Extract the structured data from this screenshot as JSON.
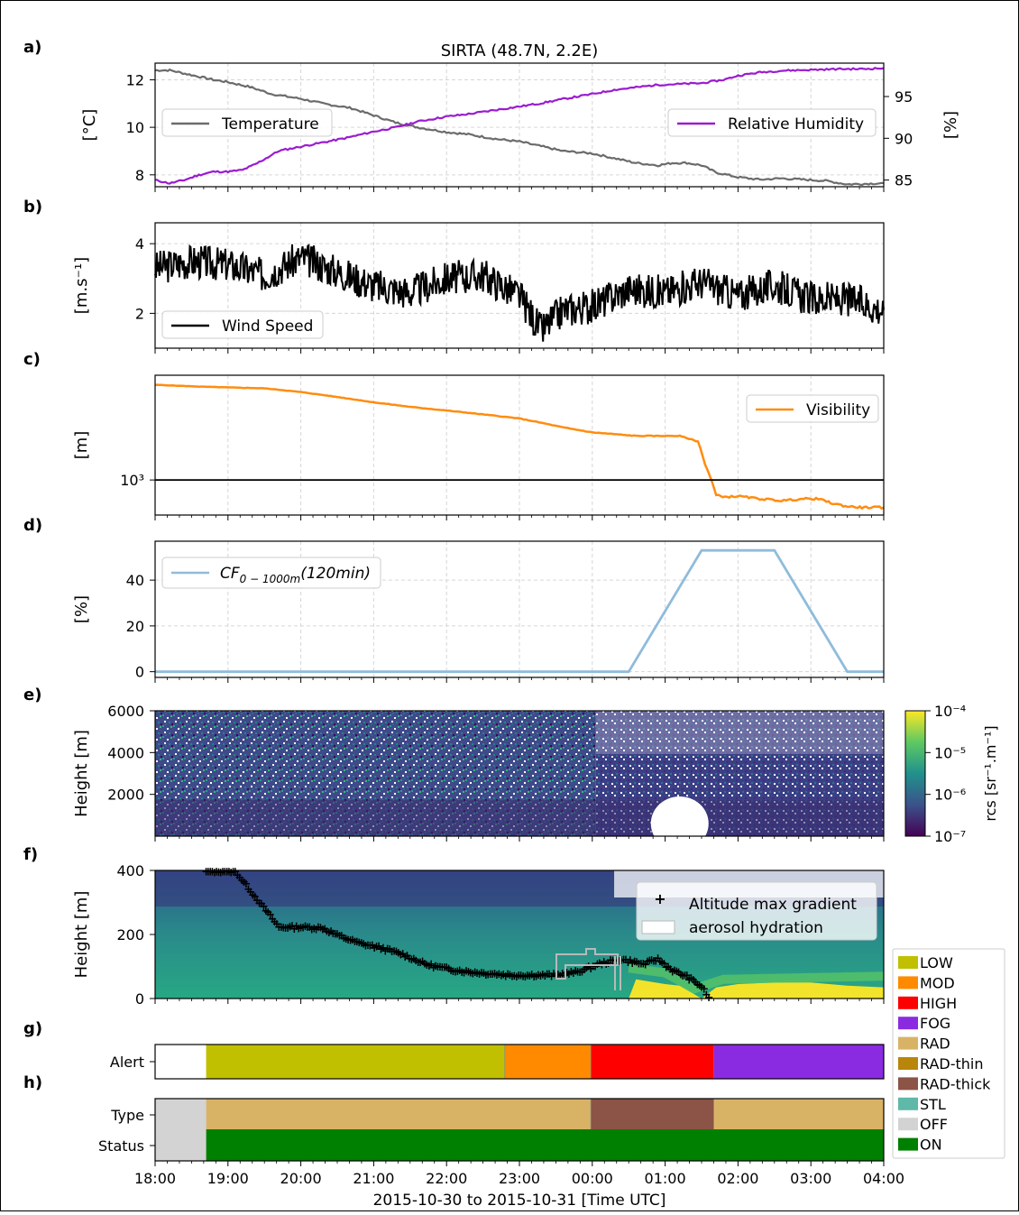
{
  "figure": {
    "title": "SIRTA (48.7N, 2.2E)",
    "xlabel": "2015-10-30 to 2015-10-31 [Time UTC]",
    "x_ticks": [
      "18:00",
      "19:00",
      "20:00",
      "21:00",
      "22:00",
      "23:00",
      "00:00",
      "01:00",
      "02:00",
      "03:00",
      "04:00"
    ],
    "x_range_hours": [
      0,
      10
    ]
  },
  "colors": {
    "temperature": "#6b6b6b",
    "humidity": "#9b1ccf",
    "wind": "#000000",
    "visibility": "#ff8c0f",
    "cloud_fraction": "#8fbcdb",
    "gradient_marker": "#ff33ff",
    "hydration": "#b9b9b9",
    "alert": {
      "LOW": "#c0c000",
      "MOD": "#ff8a00",
      "HIGH": "#ff0000",
      "FOG": "#8a2be2"
    },
    "type": {
      "RAD": "#d9b365",
      "RAD-thin": "#b8860b",
      "RAD-thick": "#8b5446",
      "STL": "#5fb8a8",
      "OFF": "#d3d3d3"
    },
    "status": {
      "ON": "#008000",
      "OFF": "#d3d3d3"
    }
  },
  "chart_data": [
    {
      "panel": "a)",
      "type": "line",
      "title": "SIRTA (48.7N, 2.2E)",
      "ylabel": "[°C]",
      "y2label": "[%]",
      "ylim": [
        7.5,
        12.7
      ],
      "y2lim": [
        84.2,
        99.0
      ],
      "yticks": [
        "8",
        "10",
        "12"
      ],
      "y2ticks": [
        "85",
        "90",
        "95"
      ],
      "legend": [
        "Temperature",
        "Relative Humidity"
      ],
      "series": [
        {
          "name": "Temperature",
          "axis": "left",
          "x": [
            0,
            0.2,
            0.5,
            0.8,
            1.0,
            1.3,
            1.6,
            2.0,
            2.3,
            2.7,
            3.0,
            3.3,
            3.6,
            4.0,
            4.3,
            4.7,
            5.0,
            5.3,
            5.6,
            6.0,
            6.3,
            6.6,
            6.9,
            7.1,
            7.3,
            7.5,
            7.7,
            8.0,
            8.3,
            8.6,
            8.9,
            9.2,
            9.5,
            10.0
          ],
          "values": [
            12.4,
            12.4,
            12.2,
            12.0,
            11.9,
            11.7,
            11.4,
            11.2,
            11.0,
            10.8,
            10.5,
            10.2,
            10.0,
            9.8,
            9.7,
            9.5,
            9.4,
            9.2,
            9.0,
            8.9,
            8.7,
            8.5,
            8.4,
            8.5,
            8.5,
            8.4,
            8.1,
            7.9,
            7.8,
            7.85,
            7.8,
            7.75,
            7.6,
            7.65
          ]
        },
        {
          "name": "Relative Humidity",
          "axis": "right",
          "x": [
            0,
            0.2,
            0.4,
            0.6,
            0.8,
            1.0,
            1.2,
            1.4,
            1.7,
            2.0,
            2.3,
            2.6,
            3.0,
            3.3,
            3.6,
            4.0,
            4.3,
            4.6,
            5.0,
            5.3,
            5.6,
            6.0,
            6.3,
            6.6,
            6.9,
            7.2,
            7.5,
            7.8,
            8.0,
            8.3,
            8.6,
            9.0,
            9.4,
            9.7,
            10.0
          ],
          "values": [
            85.0,
            84.6,
            85.0,
            85.6,
            86.0,
            86.0,
            86.2,
            87.0,
            88.5,
            89.0,
            89.5,
            90.0,
            90.8,
            91.3,
            92.0,
            92.6,
            92.9,
            93.3,
            93.8,
            94.2,
            94.7,
            95.3,
            95.8,
            96.1,
            96.4,
            96.5,
            96.6,
            97.0,
            97.5,
            97.9,
            98.1,
            98.2,
            98.3,
            98.3,
            98.4
          ]
        }
      ]
    },
    {
      "panel": "b)",
      "type": "line",
      "ylabel": "[m.s⁻¹]",
      "ylim": [
        1.0,
        4.6
      ],
      "yticks": [
        "2",
        "4"
      ],
      "legend": [
        "Wind Speed"
      ],
      "series": [
        {
          "name": "Wind Speed",
          "x": [
            0,
            0.5,
            1.0,
            1.5,
            2.0,
            2.5,
            3.0,
            3.5,
            4.0,
            4.5,
            5.0,
            5.3,
            5.6,
            6.0,
            6.5,
            7.0,
            7.5,
            8.0,
            8.5,
            9.0,
            9.5,
            10.0
          ],
          "values": [
            3.3,
            3.5,
            3.4,
            3.1,
            3.6,
            3.2,
            2.8,
            2.6,
            3.0,
            3.1,
            2.5,
            1.5,
            2.1,
            2.2,
            2.7,
            2.6,
            2.9,
            2.5,
            2.8,
            2.4,
            2.4,
            2.1
          ]
        }
      ]
    },
    {
      "panel": "c)",
      "type": "line",
      "ylabel": "[m]",
      "yscale": "log",
      "ylim": [
        600,
        4600
      ],
      "yticks": [
        "10³"
      ],
      "threshold": 1000,
      "legend": [
        "Visibility"
      ],
      "series": [
        {
          "name": "Visibility",
          "x": [
            0,
            0.3,
            0.6,
            1.0,
            1.5,
            2.0,
            2.5,
            3.0,
            3.5,
            4.0,
            4.5,
            5.0,
            5.3,
            5.6,
            6.0,
            6.3,
            6.6,
            7.0,
            7.2,
            7.45,
            7.55,
            7.7,
            7.85,
            8.0,
            8.3,
            8.6,
            8.9,
            9.1,
            9.3,
            9.5,
            9.7,
            10.0
          ],
          "values": [
            4000,
            3950,
            3900,
            3850,
            3800,
            3600,
            3350,
            3100,
            2900,
            2750,
            2600,
            2450,
            2300,
            2150,
            2000,
            1950,
            1900,
            1900,
            1900,
            1750,
            1250,
            800,
            780,
            790,
            760,
            740,
            760,
            760,
            710,
            680,
            670,
            670
          ]
        }
      ]
    },
    {
      "panel": "d)",
      "type": "line",
      "ylabel": "[%]",
      "ylim": [
        -2.5,
        57
      ],
      "yticks": [
        "0",
        "20",
        "40"
      ],
      "legend": [
        "CF_{0-1000m}(120min)"
      ],
      "series": [
        {
          "name": "CF_{0-1000m}(120min)",
          "x": [
            0,
            6.5,
            7.5,
            8.5,
            9.5,
            10.0
          ],
          "values": [
            0,
            0,
            53,
            53,
            0,
            0
          ]
        }
      ]
    },
    {
      "panel": "e)",
      "type": "heatmap",
      "ylabel": "Height [m]",
      "ylim": [
        0,
        6000
      ],
      "yticks": [
        "2000",
        "4000",
        "6000"
      ],
      "colorbar": {
        "label": "rcs [sr⁻¹.m⁻¹]",
        "ticks": [
          "10⁻⁴",
          "10⁻⁵",
          "10⁻⁶",
          "10⁻⁷"
        ]
      }
    },
    {
      "panel": "f)",
      "type": "heatmap",
      "ylabel": "Height [m]",
      "ylim": [
        0,
        400
      ],
      "yticks": [
        "0",
        "200",
        "400"
      ],
      "legend": [
        "Altitude max gradient",
        "aerosol hydration"
      ],
      "series": [
        {
          "name": "Altitude max gradient",
          "x": [
            0.7,
            0.9,
            1.1,
            1.7,
            2.0,
            2.3,
            2.5,
            2.8,
            3.1,
            3.4,
            3.7,
            4.0,
            4.3,
            4.6,
            4.9,
            5.2,
            5.5,
            5.8,
            6.1,
            6.4,
            6.7,
            6.9,
            7.1,
            7.3,
            7.5,
            7.6
          ],
          "values": [
            400,
            400,
            400,
            225,
            225,
            222,
            200,
            175,
            160,
            140,
            110,
            95,
            85,
            80,
            75,
            75,
            75,
            85,
            110,
            125,
            110,
            125,
            90,
            70,
            40,
            5
          ]
        }
      ]
    },
    {
      "panel": "g)",
      "type": "table",
      "ylabel": "Alert",
      "segments": [
        {
          "label": "",
          "start": 0,
          "end": 0.7
        },
        {
          "label": "LOW",
          "start": 0.7,
          "end": 4.8
        },
        {
          "label": "MOD",
          "start": 4.8,
          "end": 5.98
        },
        {
          "label": "HIGH",
          "start": 5.98,
          "end": 7.67
        },
        {
          "label": "FOG",
          "start": 7.67,
          "end": 10.0
        }
      ]
    },
    {
      "panel": "h)",
      "type": "table",
      "rows": [
        "Type",
        "Status"
      ],
      "type_segments": [
        {
          "label": "OFF",
          "start": 0,
          "end": 0.7
        },
        {
          "label": "RAD",
          "start": 0.7,
          "end": 5.98
        },
        {
          "label": "RAD-thick",
          "start": 5.98,
          "end": 7.67
        },
        {
          "label": "RAD",
          "start": 7.67,
          "end": 10.0
        }
      ],
      "status_segments": [
        {
          "label": "OFF",
          "start": 0,
          "end": 0.7
        },
        {
          "label": "ON",
          "start": 0.7,
          "end": 10.0
        }
      ],
      "legend": [
        "LOW",
        "MOD",
        "HIGH",
        "FOG",
        "RAD",
        "RAD-thin",
        "RAD-thick",
        "STL",
        "OFF",
        "ON"
      ]
    }
  ]
}
